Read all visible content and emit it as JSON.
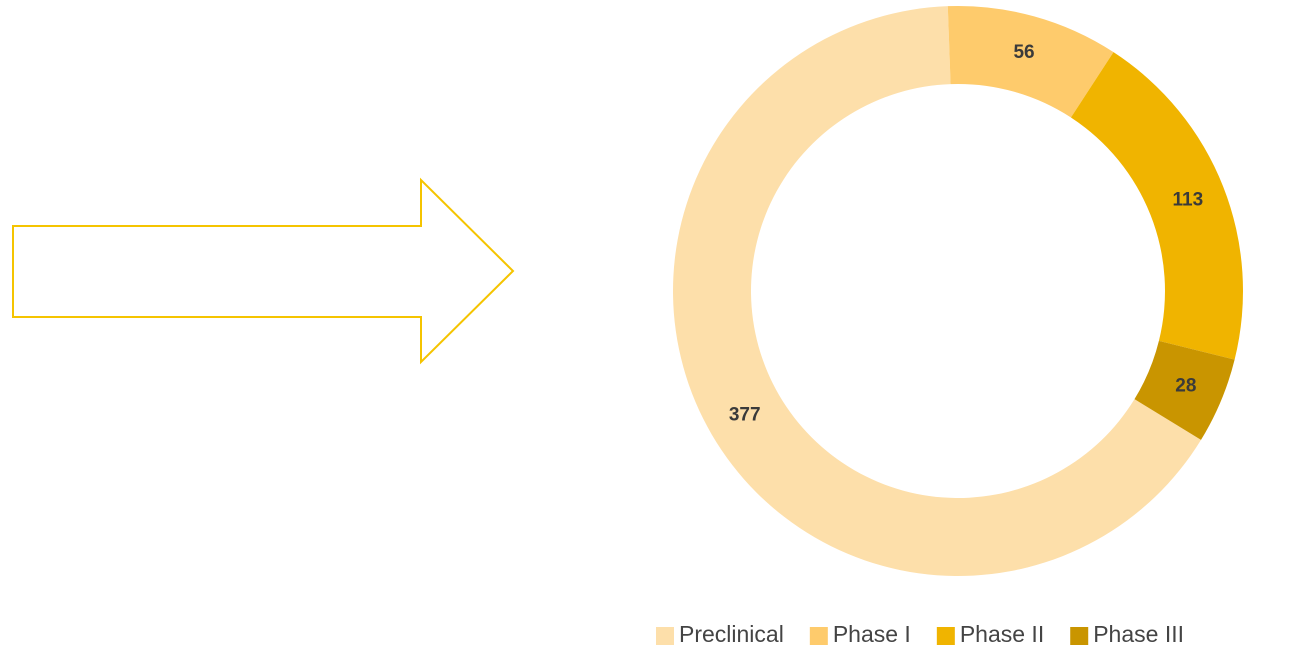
{
  "chart_data": {
    "type": "donut",
    "categories": [
      "Preclinical",
      "Phase I",
      "Phase II",
      "Phase III"
    ],
    "values": [
      377,
      56,
      113,
      28
    ],
    "colors": [
      "#fddfaa",
      "#fecb6c",
      "#f0b400",
      "#c99500"
    ],
    "legend": "bottom"
  }
}
